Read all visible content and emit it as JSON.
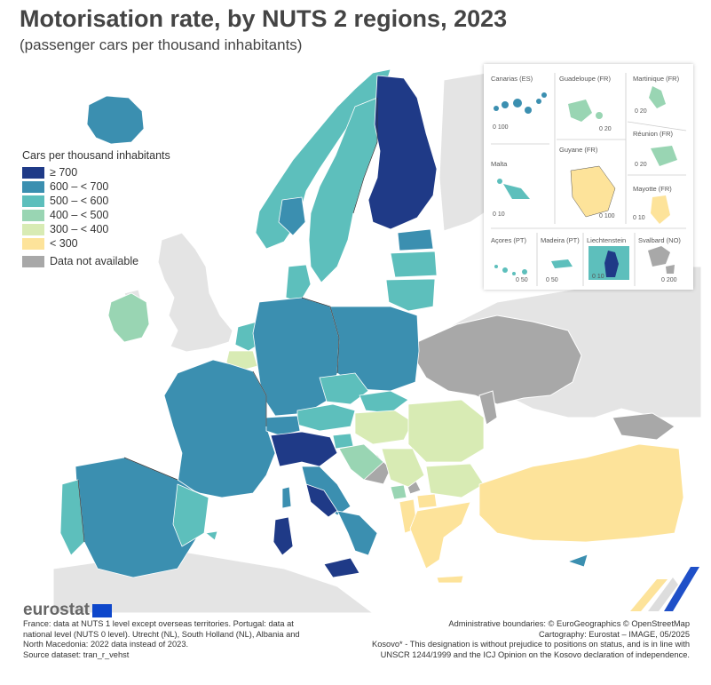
{
  "title": "Motorisation rate, by NUTS 2 regions, 2023",
  "subtitle": "(passenger cars per thousand inhabitants)",
  "legend": {
    "title": "Cars per thousand inhabitants",
    "classes": [
      {
        "label": "≥ 700",
        "color": "#1f3a87"
      },
      {
        "label": "600 – < 700",
        "color": "#3b8fb0"
      },
      {
        "label": "500 – < 600",
        "color": "#5dbfbc"
      },
      {
        "label": "400 – < 500",
        "color": "#99d5b3"
      },
      {
        "label": "300 – < 400",
        "color": "#d8ebb4"
      },
      {
        "label": "< 300",
        "color": "#fde39a"
      }
    ],
    "na": {
      "label": "Data not available",
      "color": "#a8a8a8"
    }
  },
  "insets": [
    {
      "name": "Canarias (ES)",
      "scale": "0  100",
      "color": "#3b8fb0"
    },
    {
      "name": "Guadeloupe (FR)",
      "scale": "0  20",
      "color": "#99d5b3"
    },
    {
      "name": "Martinique (FR)",
      "scale": "0  20",
      "color": "#99d5b3"
    },
    {
      "name": "Réunion (FR)",
      "scale": "0  20",
      "color": "#99d5b3"
    },
    {
      "name": "Malta",
      "scale": "0  10",
      "color": "#5dbfbc"
    },
    {
      "name": "Guyane (FR)",
      "scale": "0  100",
      "color": "#fde39a"
    },
    {
      "name": "Mayotte (FR)",
      "scale": "0  10",
      "color": "#fde39a"
    },
    {
      "name": "Açores (PT)",
      "scale": "0  50",
      "color": "#5dbfbc"
    },
    {
      "name": "Madeira (PT)",
      "scale": "0  50",
      "color": "#5dbfbc"
    },
    {
      "name": "Liechtenstein",
      "scale": "0  10",
      "color": "#1f3a87"
    },
    {
      "name": "Svalbard (NO)",
      "scale": "0  200",
      "color": "#a8a8a8"
    }
  ],
  "logo": "eurostat",
  "notes_left": [
    "France: data at NUTS 1 level except overseas territories. Portugal: data at",
    "national level (NUTS 0 level). Utrecht (NL), South Holland (NL), Albania and",
    "North Macedonia: 2022 data instead of 2023.",
    "Source dataset: tran_r_vehst"
  ],
  "notes_right": [
    "Administrative boundaries: © EuroGeographics © OpenStreetMap",
    "Cartography: Eurostat – IMAGE, 05/2025",
    "Kosovo* - This designation is without prejudice to positions on status, and is in line with",
    "UNSCR 1244/1999 and the ICJ Opinion on the Kosovo declaration of independence."
  ],
  "colors": {
    "c700": "#1f3a87",
    "c600": "#3b8fb0",
    "c500": "#5dbfbc",
    "c400": "#99d5b3",
    "c300": "#d8ebb4",
    "c0": "#fde39a",
    "na": "#a8a8a8",
    "nonEU": "#e4e4e4",
    "sea": "#ffffff"
  }
}
